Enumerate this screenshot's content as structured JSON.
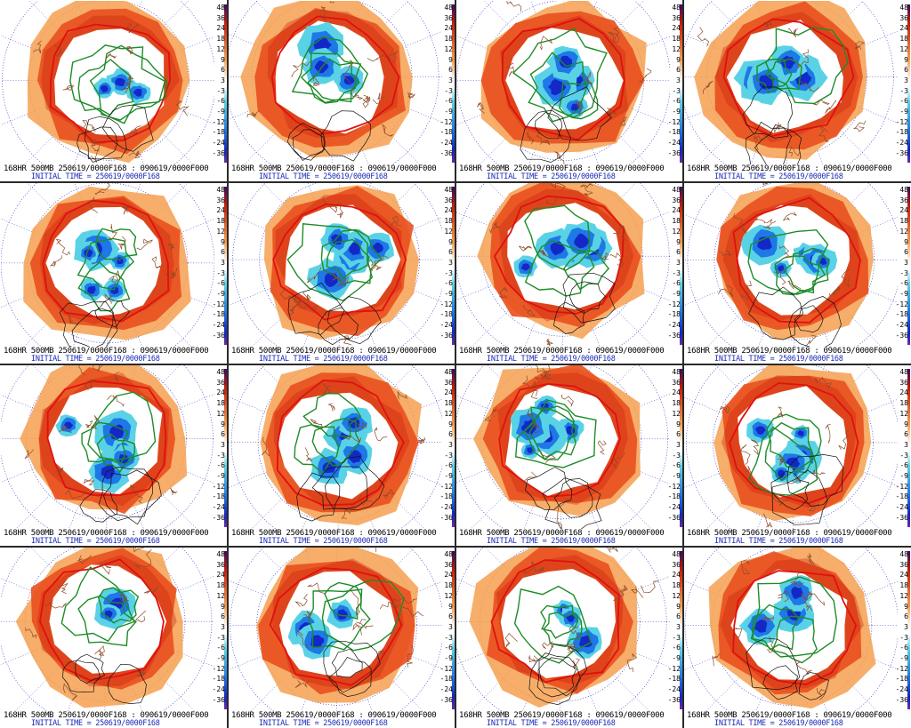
{
  "panels": [
    {
      "line1": "168HR 500MB 250619/0000F168 : 090619/0000F000",
      "line2": "INITIAL TIME = 250619/0000F168"
    },
    {
      "line1": "168HR 500MB 250619/0000F168 : 090619/0000F000",
      "line2": "INITIAL TIME = 250619/0000F168"
    },
    {
      "line1": "168HR 500MB 250619/0000F168 : 090619/0000F000",
      "line2": "INITIAL TIME = 250619/0000F168"
    },
    {
      "line1": "168HR 500MB 250619/0000F168 : 090619/0000F000",
      "line2": "INITIAL TIME = 250619/0000F168"
    },
    {
      "line1": "168HR 500MB 250619/0000F168 : 090619/0000F000",
      "line2": "INITIAL TIME = 250619/0000F168"
    },
    {
      "line1": "168HR 500MB 250619/0000F168 : 090619/0000F000",
      "line2": "INITIAL TIME = 250619/0000F168"
    },
    {
      "line1": "168HR 500MB 250619/0000F168 : 090619/0000F000",
      "line2": "INITIAL TIME = 250619/0000F168"
    },
    {
      "line1": "168HR 500MB 250619/0000F168 : 090619/0000F000",
      "line2": "INITIAL TIME = 250619/0000F168"
    },
    {
      "line1": "168HR 500MB 250619/0000F168 : 090619/0000F000",
      "line2": "INITIAL TIME = 250619/0000F168"
    },
    {
      "line1": "168HR 500MB 250619/0000F168 : 090619/0000F000",
      "line2": "INITIAL TIME = 250619/0000F168"
    },
    {
      "line1": "168HR 500MB 250619/0000F168 : 090619/0000F000",
      "line2": "INITIAL TIME = 250619/0000F168"
    },
    {
      "line1": "168HR 500MB 250619/0000F168 : 090619/0000F000",
      "line2": "INITIAL TIME = 250619/0000F168"
    },
    {
      "line1": "168HR 500MB 250619/0000F168 : 090619/0000F000",
      "line2": "INITIAL TIME = 250619/0000F168"
    },
    {
      "line1": "168HR 500MB 250619/0000F168 : 090619/0000F000",
      "line2": "INITIAL TIME = 250619/0000F168"
    },
    {
      "line1": "168HR 500MB 250619/0000F168 : 090619/0000F000",
      "line2": "INITIAL TIME = 250619/0000F168"
    },
    {
      "line1": "168HR 500MB 250619/0000F168 : 090619/0000F000",
      "line2": "INITIAL TIME = 250619/0000F168"
    }
  ],
  "scale_ticks": [
    "48",
    "36",
    "24",
    "18",
    "12",
    "9",
    "6",
    "3",
    "-3",
    "-6",
    "-9",
    "-12",
    "-18",
    "-24",
    "-36"
  ],
  "colors": {
    "positive_dark": "#c81e0a",
    "positive_mid": "#e8501e",
    "positive_light": "#f6a050",
    "negative_light": "#5ad2e6",
    "negative_mid": "#1e78e6",
    "negative_dark": "#1428c8",
    "contour_red": "#e01010",
    "contour_green": "#1e8c28",
    "coastline": "#8b4a28",
    "latlon": "#2020c0"
  }
}
